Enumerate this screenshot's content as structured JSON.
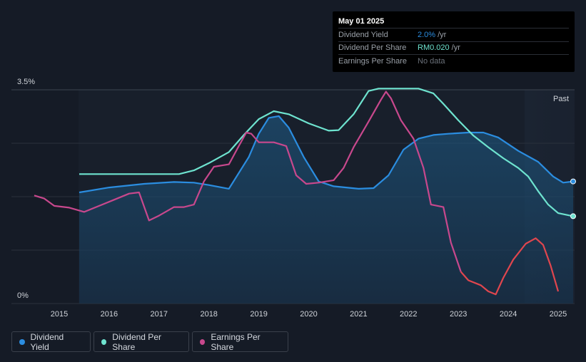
{
  "chart_data": {
    "type": "line",
    "title": "",
    "xlabel": "",
    "ylabel": "",
    "x_ticks": [
      "2015",
      "2016",
      "2017",
      "2018",
      "2019",
      "2020",
      "2021",
      "2022",
      "2023",
      "2024",
      "2025"
    ],
    "y_ticks": [
      "0%",
      "3.5%"
    ],
    "ylim": [
      0,
      3.5
    ],
    "xlim": [
      2014.5,
      2025.3
    ],
    "past_label": "Past",
    "series": [
      {
        "name": "Dividend Yield",
        "color": "#2b8de0",
        "area": true,
        "points": [
          [
            2015.4,
            1.82
          ],
          [
            2016.0,
            1.9
          ],
          [
            2016.7,
            1.96
          ],
          [
            2017.3,
            1.99
          ],
          [
            2017.7,
            1.98
          ],
          [
            2018.0,
            1.94
          ],
          [
            2018.4,
            1.88
          ],
          [
            2018.8,
            2.4
          ],
          [
            2019.0,
            2.78
          ],
          [
            2019.2,
            3.04
          ],
          [
            2019.4,
            3.07
          ],
          [
            2019.6,
            2.88
          ],
          [
            2019.9,
            2.4
          ],
          [
            2020.2,
            2.0
          ],
          [
            2020.5,
            1.92
          ],
          [
            2021.0,
            1.88
          ],
          [
            2021.3,
            1.89
          ],
          [
            2021.6,
            2.1
          ],
          [
            2021.9,
            2.52
          ],
          [
            2022.2,
            2.7
          ],
          [
            2022.5,
            2.76
          ],
          [
            2022.8,
            2.78
          ],
          [
            2023.2,
            2.8
          ],
          [
            2023.5,
            2.8
          ],
          [
            2023.8,
            2.72
          ],
          [
            2024.2,
            2.5
          ],
          [
            2024.6,
            2.32
          ],
          [
            2024.9,
            2.08
          ],
          [
            2025.1,
            1.98
          ],
          [
            2025.3,
            2.0
          ]
        ]
      },
      {
        "name": "Dividend Per Share",
        "color": "#6ee3cf",
        "area": false,
        "points": [
          [
            2015.4,
            2.12
          ],
          [
            2016.0,
            2.12
          ],
          [
            2016.8,
            2.12
          ],
          [
            2017.4,
            2.12
          ],
          [
            2017.7,
            2.18
          ],
          [
            2018.0,
            2.3
          ],
          [
            2018.4,
            2.48
          ],
          [
            2018.7,
            2.76
          ],
          [
            2019.0,
            3.02
          ],
          [
            2019.3,
            3.15
          ],
          [
            2019.6,
            3.1
          ],
          [
            2020.0,
            2.95
          ],
          [
            2020.4,
            2.83
          ],
          [
            2020.6,
            2.84
          ],
          [
            2020.9,
            3.1
          ],
          [
            2021.2,
            3.48
          ],
          [
            2021.4,
            3.52
          ],
          [
            2021.8,
            3.52
          ],
          [
            2022.2,
            3.52
          ],
          [
            2022.5,
            3.44
          ],
          [
            2022.7,
            3.27
          ],
          [
            2023.0,
            3.0
          ],
          [
            2023.3,
            2.75
          ],
          [
            2023.6,
            2.56
          ],
          [
            2023.9,
            2.38
          ],
          [
            2024.2,
            2.22
          ],
          [
            2024.4,
            2.08
          ],
          [
            2024.6,
            1.84
          ],
          [
            2024.8,
            1.62
          ],
          [
            2025.0,
            1.48
          ],
          [
            2025.3,
            1.43
          ]
        ]
      },
      {
        "name": "Earnings Per Share",
        "color_past": "#c8488d",
        "color_recent": "#e0464e",
        "recent_from": 2023.0,
        "area": false,
        "points": [
          [
            2014.5,
            1.77
          ],
          [
            2014.7,
            1.72
          ],
          [
            2014.9,
            1.6
          ],
          [
            2015.2,
            1.57
          ],
          [
            2015.5,
            1.5
          ],
          [
            2015.8,
            1.6
          ],
          [
            2016.1,
            1.7
          ],
          [
            2016.4,
            1.8
          ],
          [
            2016.6,
            1.82
          ],
          [
            2016.8,
            1.36
          ],
          [
            2017.0,
            1.44
          ],
          [
            2017.3,
            1.58
          ],
          [
            2017.5,
            1.58
          ],
          [
            2017.7,
            1.62
          ],
          [
            2017.9,
            2.0
          ],
          [
            2018.1,
            2.24
          ],
          [
            2018.4,
            2.28
          ],
          [
            2018.6,
            2.58
          ],
          [
            2018.75,
            2.8
          ],
          [
            2018.85,
            2.78
          ],
          [
            2019.0,
            2.64
          ],
          [
            2019.3,
            2.64
          ],
          [
            2019.55,
            2.58
          ],
          [
            2019.75,
            2.1
          ],
          [
            2019.95,
            1.96
          ],
          [
            2020.2,
            1.98
          ],
          [
            2020.5,
            2.02
          ],
          [
            2020.7,
            2.22
          ],
          [
            2020.9,
            2.56
          ],
          [
            2021.2,
            2.98
          ],
          [
            2021.45,
            3.34
          ],
          [
            2021.55,
            3.47
          ],
          [
            2021.65,
            3.36
          ],
          [
            2021.85,
            3.0
          ],
          [
            2022.1,
            2.7
          ],
          [
            2022.3,
            2.22
          ],
          [
            2022.45,
            1.62
          ],
          [
            2022.7,
            1.58
          ],
          [
            2022.85,
            1.0
          ],
          [
            2023.05,
            0.52
          ],
          [
            2023.2,
            0.38
          ],
          [
            2023.45,
            0.3
          ],
          [
            2023.6,
            0.2
          ],
          [
            2023.75,
            0.15
          ],
          [
            2023.9,
            0.42
          ],
          [
            2024.1,
            0.72
          ],
          [
            2024.35,
            0.98
          ],
          [
            2024.55,
            1.07
          ],
          [
            2024.7,
            0.96
          ],
          [
            2024.85,
            0.62
          ],
          [
            2025.0,
            0.2
          ]
        ]
      }
    ],
    "legend": {
      "placement": "bottom-left"
    }
  },
  "tooltip": {
    "date": "May 01 2025",
    "rows": [
      {
        "label": "Dividend Yield",
        "value": "2.0%",
        "unit": "/yr",
        "color": "#2b8de0"
      },
      {
        "label": "Dividend Per Share",
        "value": "RM0.020",
        "unit": "/yr",
        "color": "#6ee3cf"
      },
      {
        "label": "Earnings Per Share",
        "value": "No data",
        "unit": "",
        "color": "#6b717a"
      }
    ]
  },
  "legend_items": [
    {
      "label": "Dividend Yield",
      "color": "#2b8de0"
    },
    {
      "label": "Dividend Per Share",
      "color": "#6ee3cf"
    },
    {
      "label": "Earnings Per Share",
      "color": "#c8488d"
    }
  ]
}
